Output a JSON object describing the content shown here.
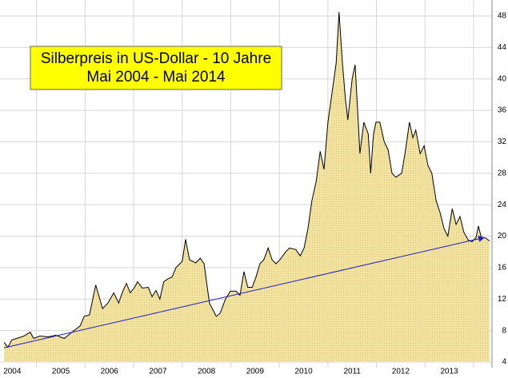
{
  "chart_data": {
    "type": "area",
    "title": "Silberpreis in US-Dollar - 10 Jahre",
    "subtitle": "Mai 2004 - Mai 2014",
    "x": [
      2004.33,
      2004.41,
      2004.49,
      2004.74,
      2004.87,
      2004.94,
      2005.07,
      2005.24,
      2005.4,
      2005.57,
      2005.73,
      2005.9,
      2005.98,
      2006.09,
      2006.22,
      2006.36,
      2006.47,
      2006.59,
      2006.69,
      2006.77,
      2006.85,
      2006.93,
      2007.02,
      2007.08,
      2007.18,
      2007.3,
      2007.38,
      2007.46,
      2007.54,
      2007.62,
      2007.71,
      2007.79,
      2007.87,
      2008.0,
      2008.07,
      2008.15,
      2008.28,
      2008.37,
      2008.45,
      2008.56,
      2008.7,
      2008.78,
      2008.89,
      2008.99,
      2009.11,
      2009.19,
      2009.27,
      2009.35,
      2009.44,
      2009.52,
      2009.6,
      2009.68,
      2009.77,
      2009.85,
      2009.93,
      2010.01,
      2010.13,
      2010.21,
      2010.34,
      2010.43,
      2010.51,
      2010.59,
      2010.67,
      2010.76,
      2010.84,
      2010.92,
      2011.0,
      2011.08,
      2011.17,
      2011.23,
      2011.3,
      2011.36,
      2011.41,
      2011.5,
      2011.56,
      2011.63,
      2011.66,
      2011.74,
      2011.83,
      2011.88,
      2011.94,
      2011.99,
      2012.07,
      2012.16,
      2012.24,
      2012.32,
      2012.4,
      2012.52,
      2012.6,
      2012.68,
      2012.75,
      2012.81,
      2012.9,
      2012.98,
      2013.06,
      2013.14,
      2013.23,
      2013.31,
      2013.39,
      2013.47,
      2013.56,
      2013.64,
      2013.72,
      2013.8,
      2013.89,
      2013.97,
      2014.05,
      2014.1,
      2014.16,
      2014.24,
      2014.33
    ],
    "values": [
      6.5,
      5.9,
      6.8,
      7.3,
      7.8,
      7.0,
      7.3,
      7.2,
      7.4,
      7.0,
      7.8,
      8.6,
      9.8,
      10.0,
      13.8,
      10.8,
      11.5,
      12.8,
      11.5,
      12.9,
      14.0,
      12.8,
      13.5,
      14.2,
      13.4,
      13.5,
      12.3,
      13.1,
      12.0,
      14.2,
      14.6,
      14.8,
      16.0,
      16.8,
      19.6,
      17.0,
      16.6,
      17.2,
      16.5,
      11.5,
      9.8,
      10.2,
      12.0,
      13.0,
      13.0,
      12.5,
      15.5,
      13.5,
      13.5,
      14.8,
      16.5,
      17.0,
      18.5,
      17.0,
      16.5,
      17.0,
      18.0,
      18.5,
      18.3,
      17.5,
      18.5,
      21.0,
      24.5,
      27.0,
      30.8,
      28.5,
      34.5,
      38.0,
      42.0,
      48.5,
      42.0,
      37.5,
      34.8,
      40.0,
      41.8,
      34.0,
      30.5,
      34.5,
      33.0,
      28.0,
      33.0,
      34.5,
      34.5,
      32.0,
      31.0,
      28.0,
      27.5,
      28.0,
      31.0,
      34.5,
      32.5,
      33.5,
      30.5,
      31.5,
      29.0,
      28.0,
      24.5,
      23.0,
      21.0,
      20.0,
      23.5,
      21.5,
      22.5,
      20.5,
      19.5,
      19.3,
      19.8,
      21.3,
      19.8,
      19.8,
      19.4
    ],
    "color": "#f3e3a0",
    "line_color": "#000000",
    "trend": {
      "x": [
        2004.33,
        2014.2
      ],
      "values": [
        5.8,
        19.8
      ],
      "color": "#1c1cc8"
    },
    "xlim": [
      2004.33,
      2014.33
    ],
    "ylim": [
      4,
      48
    ],
    "yticks": [
      4,
      8,
      12,
      16,
      20,
      24,
      28,
      32,
      36,
      40,
      44,
      48
    ],
    "xticks": [
      {
        "value": 2004.5,
        "label": "2004"
      },
      {
        "value": 2005.5,
        "label": "2005"
      },
      {
        "value": 2006.5,
        "label": "2006"
      },
      {
        "value": 2007.5,
        "label": "2007"
      },
      {
        "value": 2008.5,
        "label": "2008"
      },
      {
        "value": 2009.5,
        "label": "2009"
      },
      {
        "value": 2010.5,
        "label": "2010"
      },
      {
        "value": 2011.5,
        "label": "2011"
      },
      {
        "value": 2012.5,
        "label": "2012"
      },
      {
        "value": 2013.5,
        "label": "2013"
      }
    ],
    "xgrid": [
      2005,
      2006,
      2007,
      2008,
      2009,
      2010,
      2011,
      2012,
      2013,
      2014
    ],
    "grid": true
  }
}
